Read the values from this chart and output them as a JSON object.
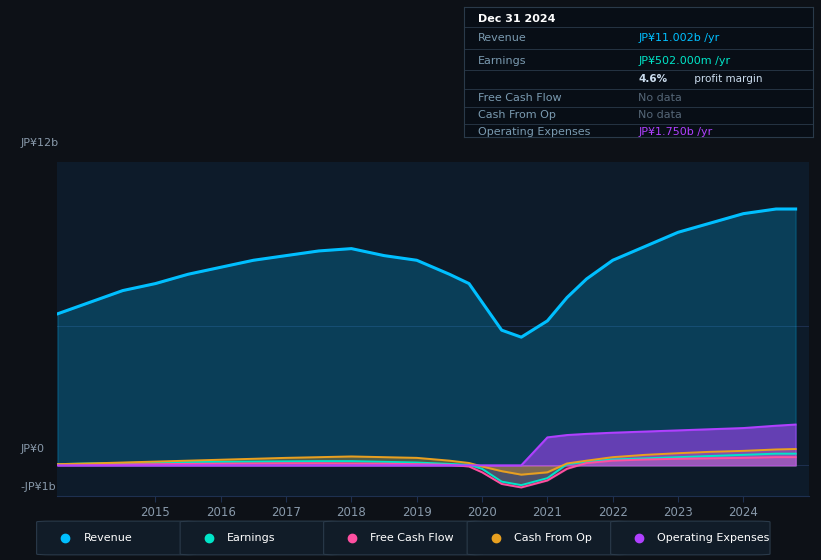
{
  "bg_color": "#0d1117",
  "plot_bg_color": "#0d1b2a",
  "ylabel_top": "JP¥12b",
  "ylabel_zero": "JP¥0",
  "ylabel_neg": "-JP¥1b",
  "years": [
    2013.5,
    2014,
    2014.5,
    2015,
    2015.5,
    2016,
    2016.5,
    2017,
    2017.5,
    2018,
    2018.5,
    2019,
    2019.5,
    2019.8,
    2020.0,
    2020.3,
    2020.6,
    2021.0,
    2021.3,
    2021.6,
    2022.0,
    2022.5,
    2023.0,
    2023.5,
    2024.0,
    2024.5,
    2024.8
  ],
  "revenue": [
    6.5,
    7.0,
    7.5,
    7.8,
    8.2,
    8.5,
    8.8,
    9.0,
    9.2,
    9.3,
    9.0,
    8.8,
    8.2,
    7.8,
    7.0,
    5.8,
    5.5,
    6.2,
    7.2,
    8.0,
    8.8,
    9.4,
    10.0,
    10.4,
    10.8,
    11.0,
    11.0
  ],
  "earnings": [
    0.05,
    0.08,
    0.1,
    0.12,
    0.14,
    0.15,
    0.16,
    0.17,
    0.18,
    0.18,
    0.15,
    0.12,
    0.06,
    0.02,
    -0.15,
    -0.7,
    -0.85,
    -0.55,
    0.05,
    0.15,
    0.25,
    0.3,
    0.35,
    0.4,
    0.45,
    0.5,
    0.5
  ],
  "free_cash_flow": [
    0.02,
    0.03,
    0.04,
    0.05,
    0.06,
    0.07,
    0.08,
    0.09,
    0.09,
    0.08,
    0.07,
    0.05,
    0.02,
    -0.05,
    -0.3,
    -0.8,
    -0.95,
    -0.65,
    -0.15,
    0.1,
    0.2,
    0.25,
    0.28,
    0.3,
    0.32,
    0.35,
    0.35
  ],
  "cash_from_op": [
    0.05,
    0.08,
    0.12,
    0.16,
    0.2,
    0.24,
    0.28,
    0.32,
    0.35,
    0.38,
    0.35,
    0.32,
    0.2,
    0.1,
    -0.05,
    -0.25,
    -0.4,
    -0.3,
    0.08,
    0.2,
    0.35,
    0.45,
    0.52,
    0.58,
    0.62,
    0.68,
    0.7
  ],
  "op_expenses": [
    0.0,
    0.0,
    0.0,
    0.0,
    0.0,
    0.0,
    0.0,
    0.0,
    0.0,
    0.0,
    0.0,
    0.0,
    0.0,
    0.0,
    0.0,
    0.0,
    0.0,
    1.2,
    1.3,
    1.35,
    1.4,
    1.45,
    1.5,
    1.55,
    1.6,
    1.7,
    1.75
  ],
  "revenue_color": "#00bfff",
  "earnings_color": "#00e5c8",
  "free_cash_flow_color": "#ff4fa0",
  "cash_from_op_color": "#e8a020",
  "op_expenses_color": "#b040ff",
  "grid_color": "#1e3050",
  "tick_color": "#8899aa",
  "nodata_color": "#556677",
  "info_bg": "#080e16",
  "info_border": "#2a3a4a",
  "info_label_color": "#7a9ab0",
  "info_val_white": "#ccddee",
  "info_date": "Dec 31 2024",
  "info_revenue_val": "JP¥11.002b",
  "info_earnings_val": "JP¥502.000m",
  "info_profit_pct": "4.6%",
  "info_op_exp_val": "JP¥1.750b",
  "legend_items": [
    "Revenue",
    "Earnings",
    "Free Cash Flow",
    "Cash From Op",
    "Operating Expenses"
  ],
  "legend_colors": [
    "#00bfff",
    "#00e5c8",
    "#ff4fa0",
    "#e8a020",
    "#b040ff"
  ],
  "xtick_labels": [
    "2015",
    "2016",
    "2017",
    "2018",
    "2019",
    "2020",
    "2021",
    "2022",
    "2023",
    "2024"
  ],
  "xtick_positions": [
    2015,
    2016,
    2017,
    2018,
    2019,
    2020,
    2021,
    2022,
    2023,
    2024
  ],
  "ylim": [
    -1.3,
    13.0
  ],
  "xlim_start": 2013.5,
  "xlim_end": 2025.0
}
